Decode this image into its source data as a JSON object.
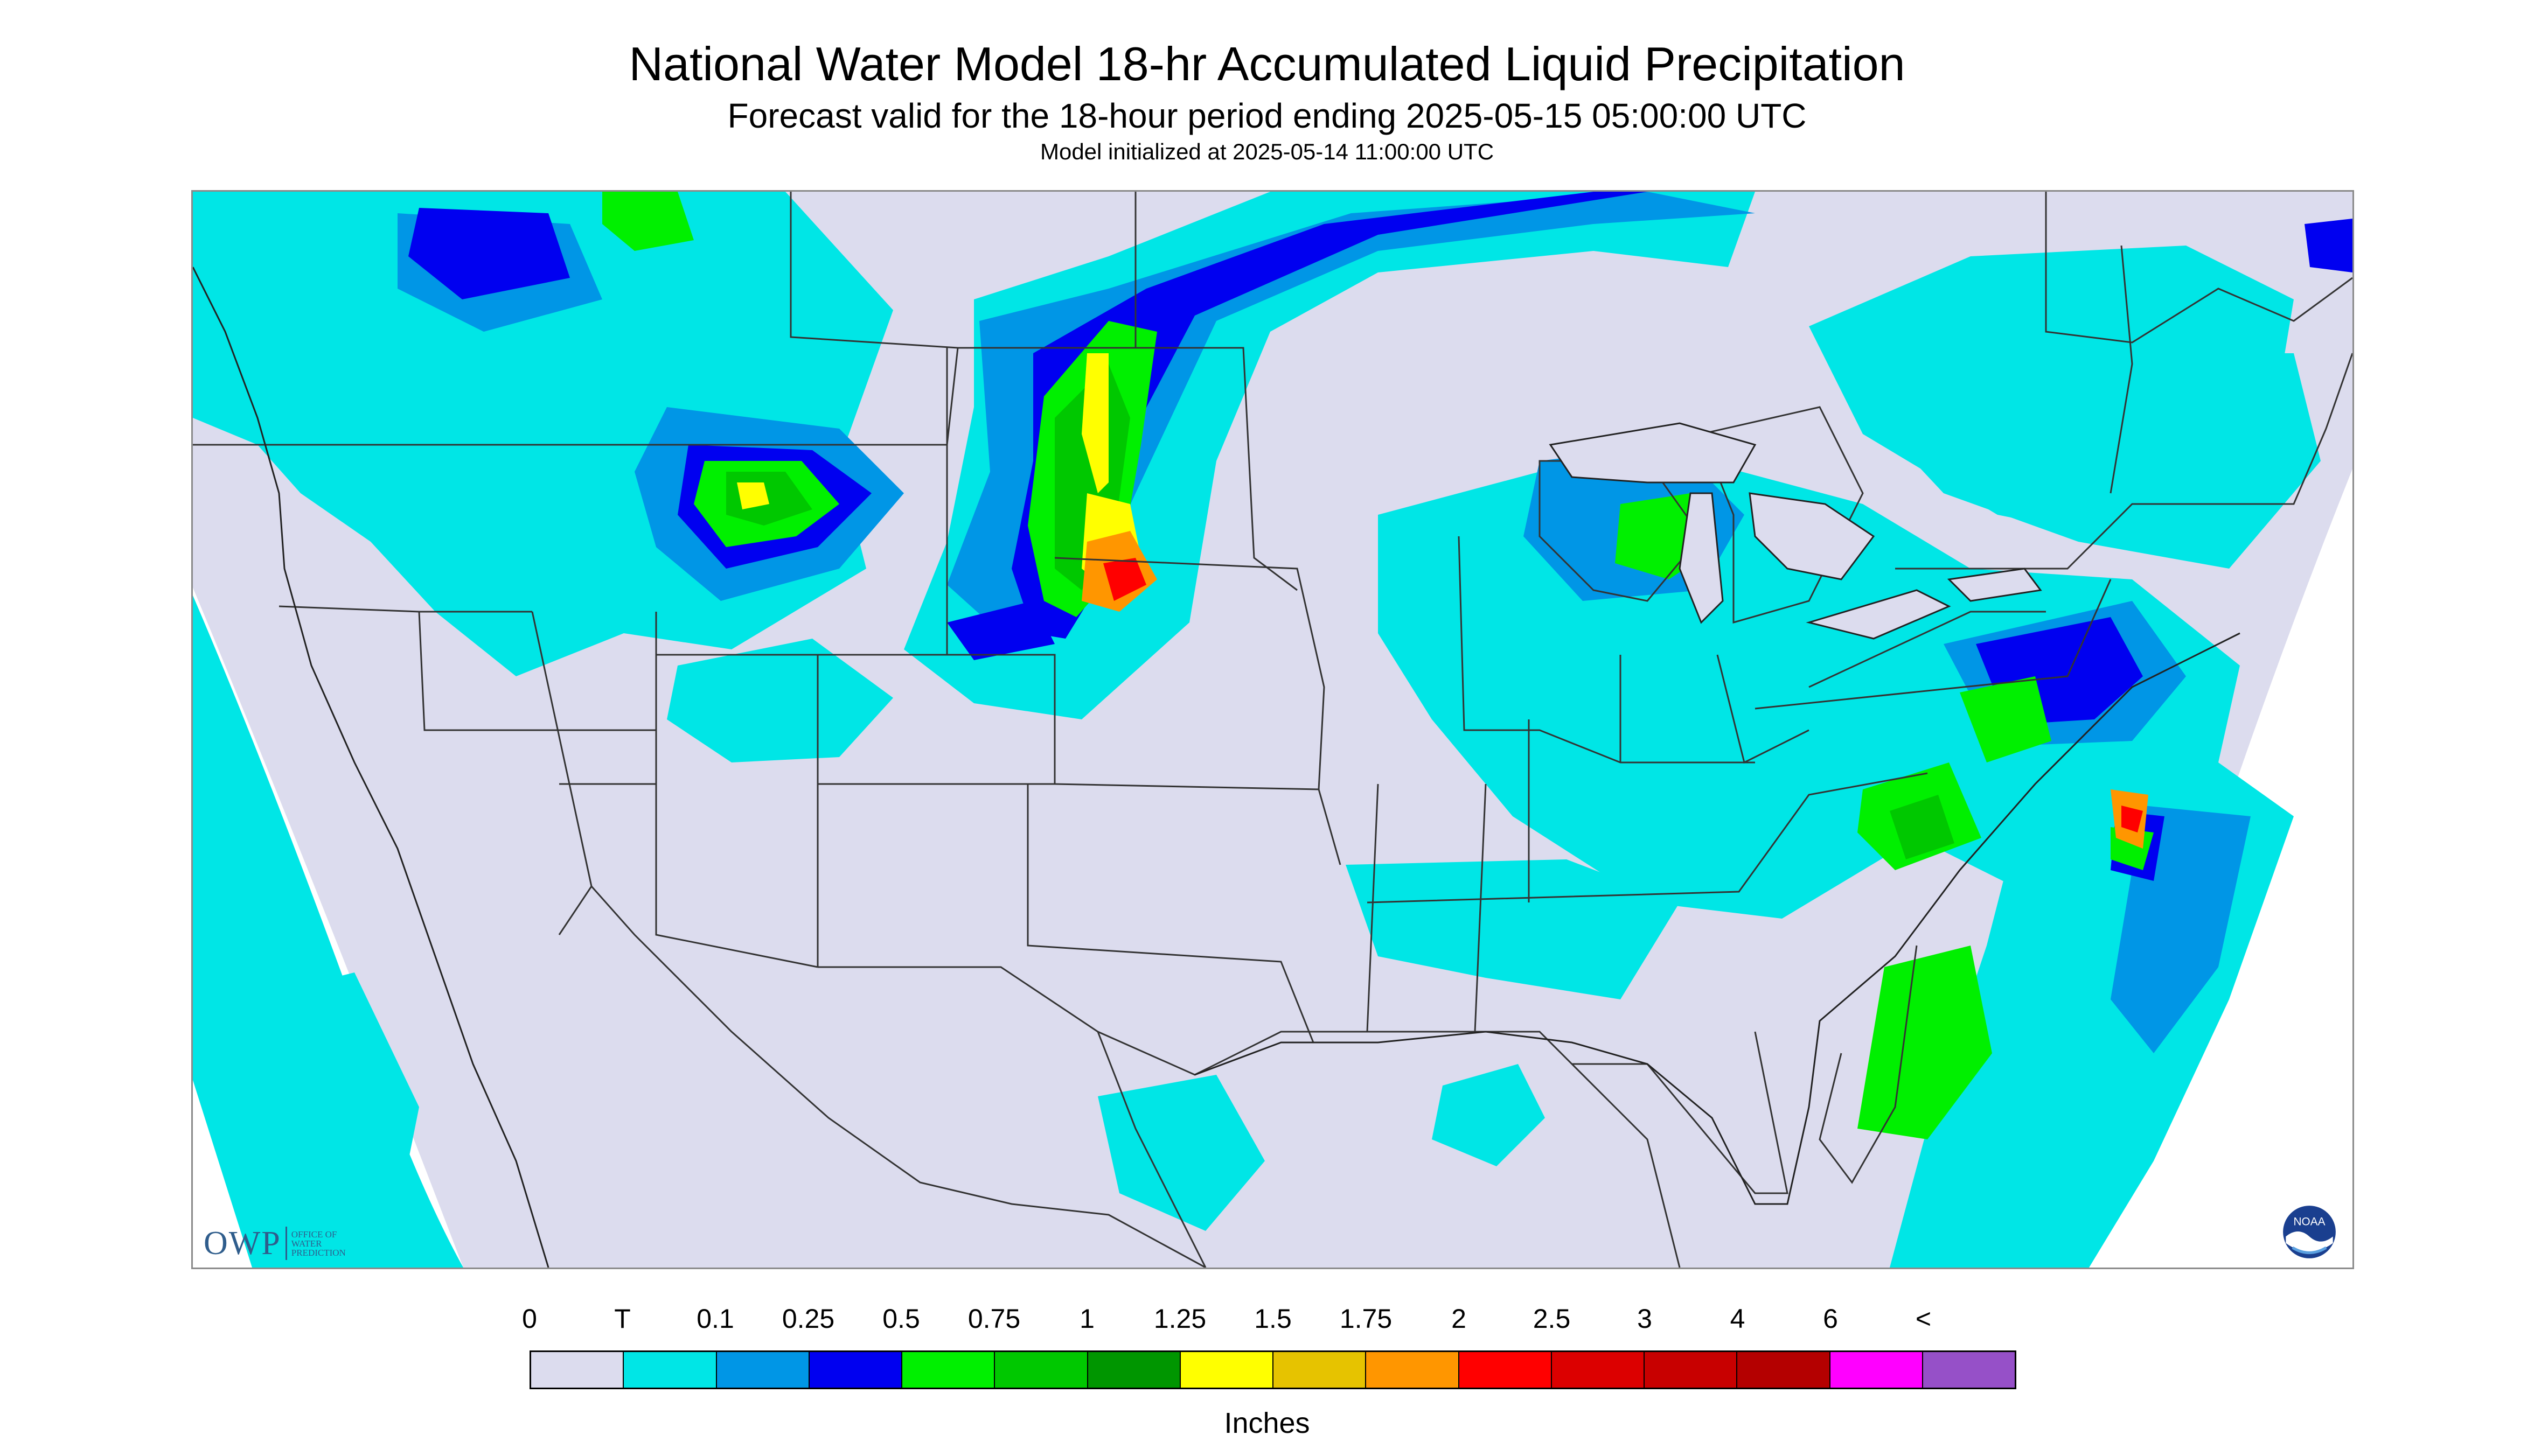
{
  "header": {
    "title": "National Water Model 18-hr Accumulated Liquid Precipitation",
    "subtitle": "Forecast valid for the 18-hour period ending 2025-05-15 05:00:00 UTC",
    "init_line": "Model initialized at 2025-05-14 11:00:00 UTC"
  },
  "logos": {
    "owp_letters": "OWP",
    "owp_line1": "OFFICE OF",
    "owp_line2": "WATER",
    "owp_line3": "PREDICTION",
    "noaa_text": "NOAA"
  },
  "legend": {
    "labels": [
      "0",
      "T",
      "0.1",
      "0.25",
      "0.5",
      "0.75",
      "1",
      "1.25",
      "1.5",
      "1.75",
      "2",
      "2.5",
      "3",
      "4",
      "6",
      "<"
    ],
    "colors": [
      "#dcdcee",
      "#00e6e6",
      "#0096e6",
      "#0000f0",
      "#00f000",
      "#00c800",
      "#009600",
      "#ffff00",
      "#e6c300",
      "#ff9600",
      "#ff0000",
      "#dc0000",
      "#c80000",
      "#b40000",
      "#ff00ff",
      "#9650c8"
    ],
    "units": "Inches"
  },
  "colors": {
    "background_outside_domain": "#ffffff",
    "domain_no_precip": "#dcdcee",
    "border_lines": "#333333"
  }
}
